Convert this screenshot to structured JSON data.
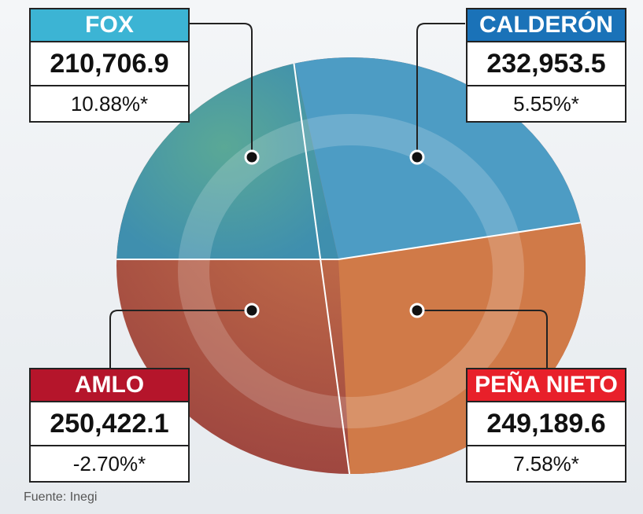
{
  "panels": [
    {
      "name": "FOX",
      "value": "210,706.9",
      "change": "10.88%*"
    },
    {
      "name": "CALDERÓN",
      "value": "232,953.5",
      "change": "5.55%*"
    },
    {
      "name": "AMLO",
      "value": "250,422.1",
      "change": "-2.70%*"
    },
    {
      "name": "PEÑA NIETO",
      "value": "249,189.6",
      "change": "7.58%*"
    }
  ],
  "source": "Fuente: Inegi"
}
